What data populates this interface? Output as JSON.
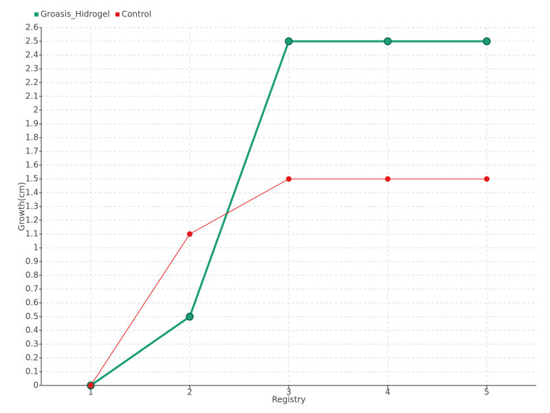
{
  "chart_data": {
    "type": "line",
    "x_label": "Registry",
    "y_label": "Growth(cm)",
    "categories": [
      "1",
      "2",
      "3",
      "4",
      "5"
    ],
    "series": [
      {
        "name": "Groasis_Hidrogel",
        "color": "#1b9e77",
        "values": [
          0,
          0.5,
          2.5,
          2.5,
          2.5
        ]
      },
      {
        "name": "Control",
        "color": "#e31a1c",
        "values": [
          0,
          1.1,
          1.5,
          1.5,
          1.5
        ]
      }
    ],
    "ylim": [
      0,
      2.6
    ],
    "yticks": [
      0,
      0.1,
      0.2,
      0.3,
      0.4,
      0.5,
      0.6,
      0.7,
      0.8,
      0.9,
      1,
      1.1,
      1.2,
      1.3,
      1.4,
      1.5,
      1.6,
      1.7,
      1.8,
      1.9,
      2,
      2.1,
      2.2,
      2.3,
      2.4,
      2.5,
      2.6
    ],
    "grid": true,
    "legend": "top-left"
  }
}
